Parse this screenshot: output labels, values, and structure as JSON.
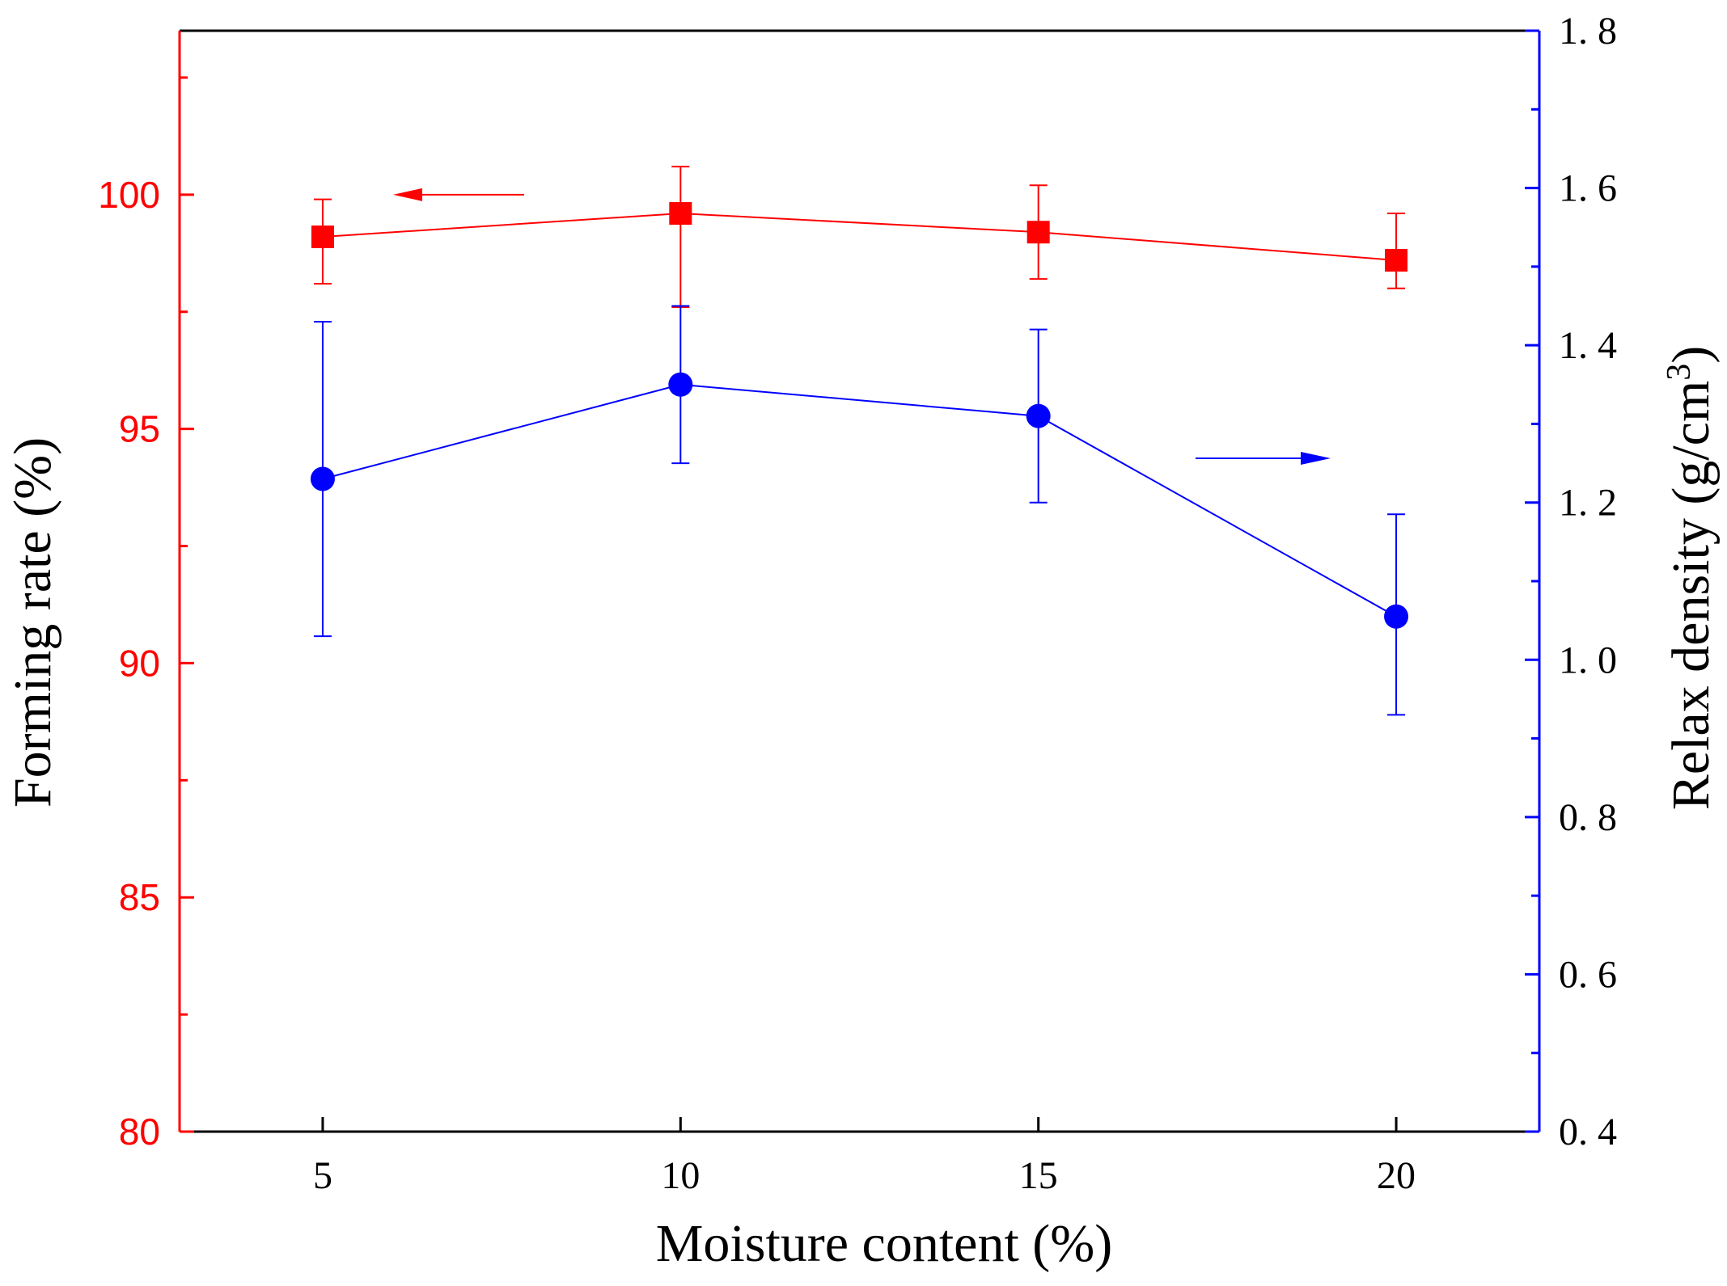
{
  "chart_data": {
    "type": "line",
    "x": [
      5,
      10,
      15,
      20
    ],
    "xlabel": "Moisture content (%)",
    "ylabel_left": "Forming rate (%)",
    "ylabel_right": "Relax density (g/cm3)",
    "ylabel_right_parts": {
      "main": "Relax density (g/cm",
      "sup": "3",
      "close": ")"
    },
    "xlim": [
      3,
      22
    ],
    "ylim_left": [
      80,
      103.5
    ],
    "ylim_right": [
      0.4,
      1.8
    ],
    "x_ticks": [
      5,
      10,
      15,
      20
    ],
    "x_tick_labels": [
      "5",
      "10",
      "15",
      "20"
    ],
    "y_left_ticks": [
      80,
      85,
      90,
      95,
      100
    ],
    "y_left_tick_labels": [
      "80",
      "85",
      "90",
      "95",
      "100"
    ],
    "y_right_ticks": [
      0.4,
      0.6,
      0.8,
      1.0,
      1.2,
      1.4,
      1.6,
      1.8
    ],
    "y_right_tick_labels": [
      "0. 4",
      "0. 6",
      "0. 8",
      "1. 0",
      "1. 2",
      "1. 4",
      "1. 6",
      "1. 8"
    ],
    "grid": false,
    "series": [
      {
        "name": "Forming rate",
        "axis": "left",
        "marker": "square",
        "color": "#ff0000",
        "values": [
          99.1,
          99.6,
          99.2,
          98.6
        ],
        "err_low": [
          98.1,
          97.6,
          98.2,
          98.0
        ],
        "err_high": [
          99.9,
          100.6,
          100.2,
          99.6
        ]
      },
      {
        "name": "Relax density",
        "axis": "right",
        "marker": "circle",
        "color": "#0000ff",
        "values": [
          1.23,
          1.35,
          1.31,
          1.055
        ],
        "err_low": [
          1.03,
          1.25,
          1.2,
          0.93
        ],
        "err_high": [
          1.43,
          1.45,
          1.42,
          1.185
        ]
      }
    ],
    "annotations": [
      {
        "type": "arrow",
        "direction": "left",
        "points_to_axis": "left",
        "color": "#ff0000"
      },
      {
        "type": "arrow",
        "direction": "right",
        "points_to_axis": "right",
        "color": "#0000ff"
      }
    ]
  }
}
